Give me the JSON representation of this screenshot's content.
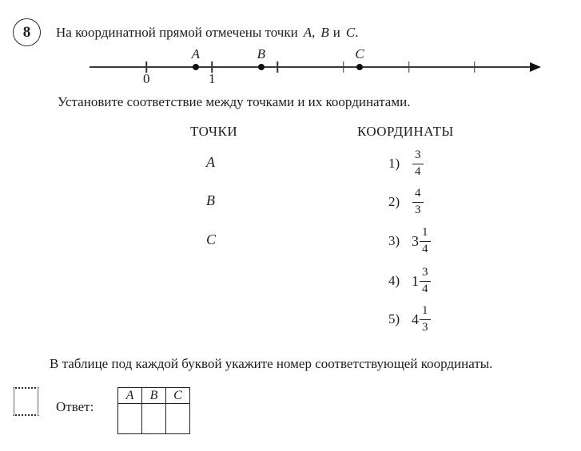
{
  "problem": {
    "number": "8",
    "statement": {
      "prefix": "На координатной прямой отмечены точки",
      "point_a": "A",
      "sep1": ",",
      "point_b": "B",
      "sep2": "и",
      "point_c": "C",
      "sep3": "."
    }
  },
  "number_line": {
    "ticks": [
      {
        "value": 0,
        "label": "0"
      },
      {
        "value": 1,
        "label": "1"
      },
      {
        "value": 2,
        "label": ""
      },
      {
        "value": 3,
        "label": ""
      },
      {
        "value": 4,
        "label": ""
      },
      {
        "value": 5,
        "label": ""
      }
    ],
    "points": [
      {
        "label": "A",
        "value": 0.75
      },
      {
        "label": "B",
        "value": 1.75
      },
      {
        "label": "C",
        "value": 3.25
      }
    ]
  },
  "match_instruction": "Установите соответствие между точками и их координатами.",
  "match": {
    "points_header": "ТОЧКИ",
    "coords_header": "КООРДИНАТЫ",
    "points": [
      "A",
      "B",
      "C"
    ],
    "coordinates": [
      {
        "num": "1)",
        "whole": "",
        "numerator": "3",
        "denominator": "4"
      },
      {
        "num": "2)",
        "whole": "",
        "numerator": "4",
        "denominator": "3"
      },
      {
        "num": "3)",
        "whole": "3",
        "numerator": "1",
        "denominator": "4"
      },
      {
        "num": "4)",
        "whole": "1",
        "numerator": "3",
        "denominator": "4"
      },
      {
        "num": "5)",
        "whole": "4",
        "numerator": "1",
        "denominator": "3"
      }
    ]
  },
  "table_instruction": "В таблице под каждой буквой укажите номер соответствующей координаты.",
  "answer": {
    "label": "Ответ:",
    "headers": [
      "A",
      "B",
      "C"
    ],
    "values": [
      "",
      "",
      ""
    ]
  }
}
